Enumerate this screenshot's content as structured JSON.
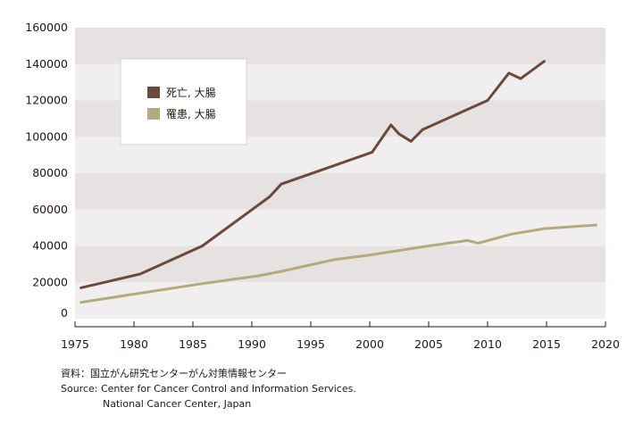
{
  "chart_data": {
    "type": "line",
    "title": "",
    "xlabel": "",
    "ylabel": "",
    "xlim": [
      1975,
      2020
    ],
    "ylim": [
      0,
      160000
    ],
    "x_ticks": [
      "1975",
      "1980",
      "1985",
      "1990",
      "1995",
      "2000",
      "2005",
      "2010",
      "2015",
      "2020"
    ],
    "y_ticks": [
      "0",
      "20000",
      "40000",
      "60000",
      "80000",
      "100000",
      "120000",
      "140000",
      "160000"
    ],
    "grid": "alternating horizontal bands",
    "legend_position": "top-left",
    "series": [
      {
        "name": "死亡, 大腸",
        "color": "#6b4a3a",
        "points": [
          [
            1975.5,
            17000
          ],
          [
            1980.5,
            24500
          ],
          [
            1985.8,
            40000
          ],
          [
            1991.5,
            67000
          ],
          [
            1992.5,
            74000
          ],
          [
            2000.2,
            91500
          ],
          [
            2001.8,
            106500
          ],
          [
            2002.5,
            101500
          ],
          [
            2003.5,
            97500
          ],
          [
            2004.5,
            104000
          ],
          [
            2010,
            120000
          ],
          [
            2011.8,
            135000
          ],
          [
            2012.8,
            132000
          ],
          [
            2014.8,
            141500
          ]
        ]
      },
      {
        "name": "罹患, 大腸",
        "color": "#b5aa7a",
        "points": [
          [
            1975.5,
            9000
          ],
          [
            1980.5,
            14000
          ],
          [
            1985.5,
            19000
          ],
          [
            1990.5,
            23500
          ],
          [
            1992.5,
            26000
          ],
          [
            1997,
            32500
          ],
          [
            2000,
            35000
          ],
          [
            2005,
            40000
          ],
          [
            2008.3,
            43000
          ],
          [
            2009.2,
            41500
          ],
          [
            2012,
            46500
          ],
          [
            2014.8,
            49500
          ],
          [
            2019.2,
            51500
          ]
        ]
      }
    ]
  },
  "source": {
    "line1": "資料：国立がん研究センターがん対策情報センター",
    "line2": "Source: Center for Cancer Control and Information Services.",
    "line3": "National Cancer Center, Japan"
  }
}
